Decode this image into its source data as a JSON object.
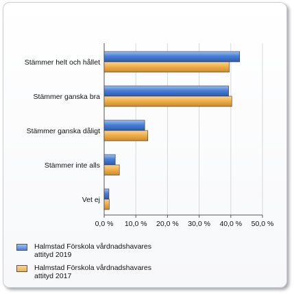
{
  "chart_data": {
    "type": "bar",
    "orientation": "horizontal",
    "categories": [
      "Stämmer helt och hållet",
      "Stämmer ganska bra",
      "Stämmer ganska dåligt",
      "Stämmer inte alls",
      "Vet ej"
    ],
    "series": [
      {
        "name": "Halmstad Förskola vårdnadshavares attityd 2019",
        "values": [
          42.8,
          39.3,
          12.8,
          3.5,
          1.5
        ],
        "color": "#4a7fd6"
      },
      {
        "name": "Halmstad Förskola vårdnadshavares attityd 2017",
        "values": [
          39.5,
          40.3,
          13.8,
          4.8,
          1.6
        ],
        "color": "#f0b04a"
      }
    ],
    "xlim": [
      0,
      50
    ],
    "ticks": [
      "0,0 %",
      "10,0 %",
      "20,0 %",
      "30,0 %",
      "40,0 %",
      "50,0 %"
    ],
    "grid": true,
    "legend_position": "bottom-left"
  }
}
